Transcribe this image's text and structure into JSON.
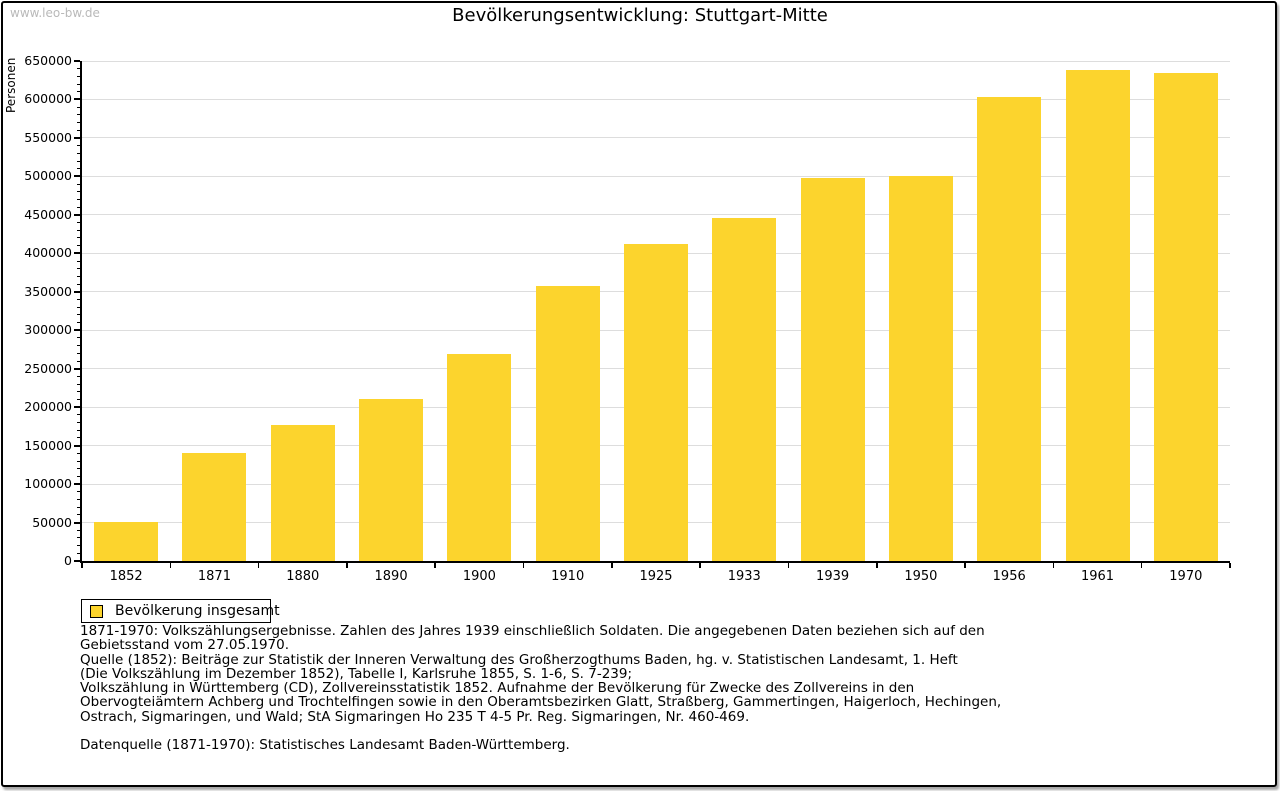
{
  "watermark": "www.leo-bw.de",
  "chart_data": {
    "type": "bar",
    "title": "Bevölkerungsentwicklung: Stuttgart-Mitte",
    "ylabel": "Personen",
    "xlabel": "",
    "categories": [
      "1852",
      "1871",
      "1880",
      "1890",
      "1900",
      "1910",
      "1925",
      "1933",
      "1939",
      "1950",
      "1956",
      "1961",
      "1970"
    ],
    "series": [
      {
        "name": "Bevölkerung insgesamt",
        "values": [
          51000,
          141000,
          177000,
          210000,
          269000,
          358000,
          412000,
          446000,
          498000,
          500000,
          603000,
          638000,
          634000
        ]
      }
    ],
    "ylim": [
      0,
      650000
    ],
    "ytick_step": 50000,
    "ytick_minor_step": 10000,
    "grid": true,
    "legend_position": "bottom-left",
    "bar_color": "#fcd42d",
    "gridline_color": "#dddddd"
  },
  "notes_lines": [
    "1871-1970: Volkszählungsergebnisse. Zahlen des Jahres 1939 einschließlich Soldaten. Die angegebenen Daten beziehen sich auf den",
    "Gebietsstand vom 27.05.1970.",
    "Quelle (1852): Beiträge zur Statistik der Inneren Verwaltung des Großherzogthums Baden, hg. v. Statistischen Landesamt, 1. Heft",
    "(Die Volkszählung im Dezember 1852), Tabelle I, Karlsruhe 1855, S. 1-6, S. 7-239;",
    "Volkszählung in Württemberg (CD), Zollvereinsstatistik 1852. Aufnahme der Bevölkerung für Zwecke des Zollvereins in den",
    "Obervogteiämtern Achberg und Trochtelfingen sowie in den Oberamtsbezirken Glatt, Straßberg, Gammertingen, Haigerloch, Hechingen,",
    "Ostrach, Sigmaringen, und Wald; StA Sigmaringen Ho 235 T 4-5 Pr. Reg. Sigmaringen, Nr. 460-469."
  ],
  "datasource": "Datenquelle (1871-1970): Statistisches Landesamt Baden-Württemberg."
}
